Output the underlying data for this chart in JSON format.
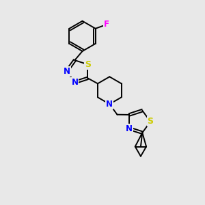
{
  "bg_color": "#e8e8e8",
  "bond_color": "#000000",
  "N_color": "#0000ff",
  "S_color": "#cccc00",
  "F_color": "#ff00ff",
  "lw": 1.4,
  "fs": 8.0,
  "xlim": [
    0,
    10
  ],
  "ylim": [
    0,
    10
  ]
}
